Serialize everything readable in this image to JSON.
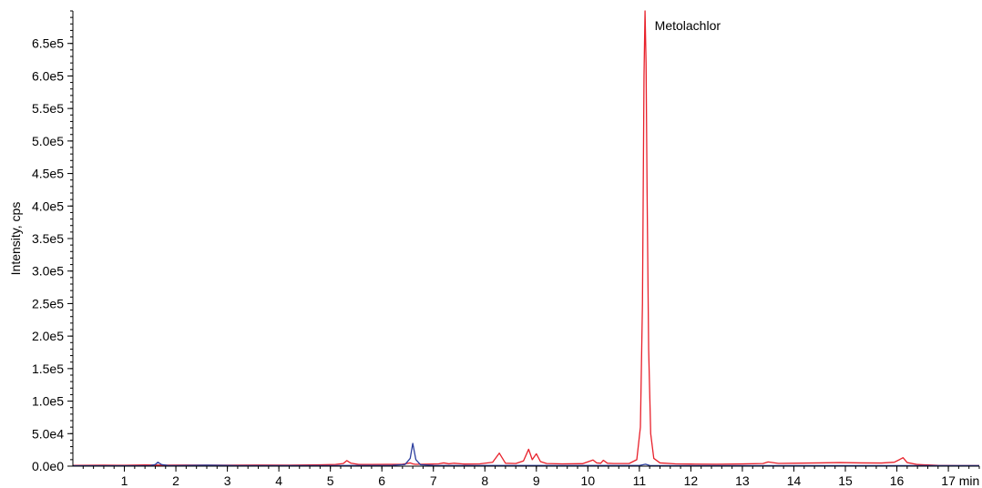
{
  "chart_data": {
    "type": "line",
    "title": "",
    "xlabel": "",
    "x_unit": "min",
    "ylabel": "Intensity, cps",
    "xlim": [
      0,
      17.6
    ],
    "ylim": [
      0,
      700000
    ],
    "x_ticks": [
      {
        "value": 1,
        "label": "1"
      },
      {
        "value": 2,
        "label": "2"
      },
      {
        "value": 3,
        "label": "3"
      },
      {
        "value": 4,
        "label": "4"
      },
      {
        "value": 5,
        "label": "5"
      },
      {
        "value": 6,
        "label": "6"
      },
      {
        "value": 7,
        "label": "7"
      },
      {
        "value": 8,
        "label": "8"
      },
      {
        "value": 9,
        "label": "9"
      },
      {
        "value": 10,
        "label": "10"
      },
      {
        "value": 11,
        "label": "11"
      },
      {
        "value": 12,
        "label": "12"
      },
      {
        "value": 13,
        "label": "13"
      },
      {
        "value": 14,
        "label": "14"
      },
      {
        "value": 15,
        "label": "15"
      },
      {
        "value": 16,
        "label": "16"
      },
      {
        "value": 17,
        "label": "17"
      }
    ],
    "y_ticks": [
      {
        "value": 0,
        "label": "0.0e0"
      },
      {
        "value": 50000,
        "label": "5.0e4"
      },
      {
        "value": 100000,
        "label": "1.0e5"
      },
      {
        "value": 150000,
        "label": "1.5e5"
      },
      {
        "value": 200000,
        "label": "2.0e5"
      },
      {
        "value": 250000,
        "label": "2.5e5"
      },
      {
        "value": 300000,
        "label": "3.0e5"
      },
      {
        "value": 350000,
        "label": "3.5e5"
      },
      {
        "value": 400000,
        "label": "4.0e5"
      },
      {
        "value": 450000,
        "label": "4.5e5"
      },
      {
        "value": 500000,
        "label": "5.0e5"
      },
      {
        "value": 550000,
        "label": "5.5e5"
      },
      {
        "value": 600000,
        "label": "6.0e5"
      },
      {
        "value": 650000,
        "label": "6.5e5"
      }
    ],
    "grid": false,
    "annotations": [
      {
        "text": "Metolachlor",
        "x": 11.12,
        "y": 700000
      }
    ],
    "series": [
      {
        "color": "#e8212b",
        "x": [
          0.0,
          0.6,
          1.0,
          1.4,
          1.8,
          2.2,
          2.6,
          3.0,
          3.6,
          4.2,
          4.8,
          5.1,
          5.25,
          5.32,
          5.4,
          5.55,
          5.8,
          6.1,
          6.4,
          6.55,
          6.6,
          6.65,
          6.8,
          7.1,
          7.2,
          7.3,
          7.4,
          7.6,
          7.9,
          8.15,
          8.28,
          8.4,
          8.6,
          8.75,
          8.85,
          8.92,
          9.0,
          9.08,
          9.2,
          9.5,
          9.9,
          10.1,
          10.17,
          10.25,
          10.3,
          10.38,
          10.5,
          10.8,
          10.95,
          11.02,
          11.06,
          11.09,
          11.11,
          11.13,
          11.15,
          11.18,
          11.22,
          11.28,
          11.4,
          11.7,
          12.0,
          12.5,
          13.0,
          13.4,
          13.5,
          13.7,
          14.0,
          14.5,
          14.9,
          15.3,
          15.7,
          15.95,
          16.05,
          16.12,
          16.2,
          16.4,
          16.8,
          17.2,
          17.6
        ],
        "y": [
          1200,
          1500,
          1400,
          1800,
          1500,
          1700,
          1600,
          1500,
          1700,
          1600,
          2000,
          2600,
          4000,
          8500,
          4500,
          2600,
          2600,
          2800,
          3000,
          5000,
          3500,
          2800,
          3000,
          3500,
          5000,
          3600,
          4500,
          3200,
          3500,
          6000,
          20000,
          4500,
          4000,
          8000,
          26000,
          10000,
          19000,
          7000,
          4000,
          3500,
          3800,
          9500,
          5000,
          4500,
          9000,
          4500,
          4000,
          4000,
          10000,
          60000,
          250000,
          600000,
          700000,
          620000,
          420000,
          180000,
          50000,
          12000,
          5000,
          3500,
          3200,
          3000,
          3400,
          4000,
          6500,
          4200,
          4500,
          5000,
          5500,
          5000,
          4800,
          6000,
          10000,
          13000,
          5500,
          2500,
          1200,
          900,
          900
        ]
      },
      {
        "color": "#2b3e9e",
        "x": [
          0.0,
          1.0,
          1.5,
          1.6,
          1.65,
          1.72,
          1.85,
          2.0,
          2.6,
          3.2,
          4.0,
          5.0,
          5.6,
          6.2,
          6.45,
          6.55,
          6.6,
          6.66,
          6.75,
          7.0,
          8.0,
          9.0,
          10.0,
          11.0,
          11.12,
          11.2,
          12.0,
          13.0,
          14.0,
          15.0,
          16.0,
          17.0,
          17.6
        ],
        "y": [
          600,
          700,
          800,
          2500,
          6000,
          2500,
          1000,
          900,
          1500,
          900,
          800,
          900,
          1000,
          1200,
          2500,
          12000,
          35000,
          10000,
          2200,
          1200,
          1000,
          1000,
          1000,
          1000,
          3000,
          1000,
          800,
          800,
          800,
          800,
          800,
          800,
          800
        ]
      }
    ]
  }
}
